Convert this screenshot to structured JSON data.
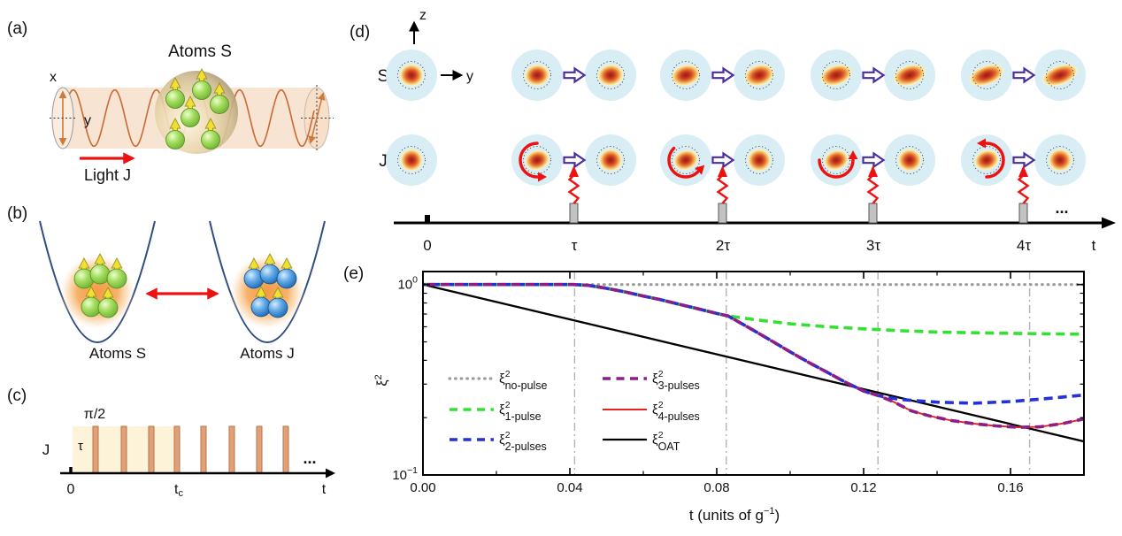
{
  "panels": {
    "a": {
      "label": "(a)",
      "title": "Atoms S",
      "x_label": "x",
      "y_label": "y",
      "light_label": "Light J"
    },
    "b": {
      "label": "(b)",
      "left_label": "Atoms S",
      "right_label": "Atoms J"
    },
    "c": {
      "label": "(c)",
      "j_label": "J",
      "pulse_angle": "π/2",
      "tau_label": "τ",
      "zero_label": "0",
      "tc_base": "t",
      "tc_sub": "c",
      "t_label": "t",
      "ellipsis": "..."
    },
    "d": {
      "label": "(d)",
      "s_label": "S",
      "j_label": "J",
      "z_label": "z",
      "y_label": "y",
      "time_ticks": [
        "0",
        "τ",
        "2τ",
        "3τ",
        "4τ"
      ],
      "t_label": "t",
      "ellipsis": "..."
    },
    "e": {
      "label": "(e)"
    }
  },
  "chart_data": {
    "type": "line",
    "x_axis": {
      "label_base": "t (units of g",
      "label_sup": "−1",
      "label_close": ")",
      "range": [
        0,
        0.18
      ],
      "major_ticks": [
        0,
        0.04,
        0.08,
        0.12,
        0.16
      ],
      "major_tick_labels": [
        "0.00",
        "0.04",
        "0.08",
        "0.12",
        "0.16"
      ],
      "minor_ticks": [
        0.02,
        0.06,
        0.1,
        0.14,
        0.18
      ]
    },
    "y_axis": {
      "label_base": "ξ",
      "label_sup": "2",
      "scale": "log",
      "range": [
        0.1,
        1.17
      ],
      "major_ticks": [
        {
          "value": 1,
          "base": "10",
          "exp": "0"
        },
        {
          "value": 0.1,
          "base": "10",
          "exp": "−1"
        }
      ],
      "minor_ticks": [
        0.2,
        0.3,
        0.4,
        0.5,
        0.6,
        0.7,
        0.8,
        0.9
      ]
    },
    "guide_lines_x": [
      0.0413,
      0.0826,
      0.1239,
      0.1652
    ],
    "grid": false,
    "legend": {
      "symbol": "ξ",
      "sup": "2",
      "columns": 2,
      "position": "inside-lower-left",
      "entries_order": [
        "no-pulse",
        "1-pulse",
        "2-pulses",
        "3-pulses",
        "4-pulses",
        "OAT"
      ]
    },
    "series": [
      {
        "name": "no-pulse",
        "label_sub": "no-pulse",
        "color": "#9b9b9b",
        "line": "dotted",
        "width": 3.2,
        "points": [
          [
            0,
            1
          ],
          [
            0.18,
            1
          ]
        ]
      },
      {
        "name": "OAT",
        "label_sub": "OAT",
        "color": "#000000",
        "line": "solid",
        "width": 2.3,
        "points": [
          [
            0,
            1
          ],
          [
            0.18,
            0.15
          ]
        ]
      },
      {
        "name": "4-pulses",
        "label_sub": "4-pulses",
        "color": "#e62222",
        "line": "solid",
        "width": 1.9,
        "points": [
          [
            0,
            1
          ],
          [
            0.01,
            1
          ],
          [
            0.02,
            1
          ],
          [
            0.03,
            1
          ],
          [
            0.041,
            1
          ],
          [
            0.045,
            0.99
          ],
          [
            0.05,
            0.955
          ],
          [
            0.055,
            0.915
          ],
          [
            0.06,
            0.87
          ],
          [
            0.065,
            0.83
          ],
          [
            0.07,
            0.785
          ],
          [
            0.075,
            0.745
          ],
          [
            0.08,
            0.705
          ],
          [
            0.083,
            0.685
          ],
          [
            0.09,
            0.575
          ],
          [
            0.095,
            0.505
          ],
          [
            0.1,
            0.443
          ],
          [
            0.105,
            0.39
          ],
          [
            0.11,
            0.347
          ],
          [
            0.115,
            0.307
          ],
          [
            0.12,
            0.276
          ],
          [
            0.124,
            0.261
          ],
          [
            0.128,
            0.243
          ],
          [
            0.133,
            0.217
          ],
          [
            0.138,
            0.204
          ],
          [
            0.144,
            0.193
          ],
          [
            0.15,
            0.186
          ],
          [
            0.156,
            0.181
          ],
          [
            0.162,
            0.178
          ],
          [
            0.168,
            0.179
          ],
          [
            0.174,
            0.186
          ],
          [
            0.18,
            0.197
          ]
        ]
      },
      {
        "name": "1-pulse",
        "label_sub": "1-pulse",
        "color": "#33e133",
        "line": "dashed",
        "width": 3.6,
        "points": [
          [
            0,
            1
          ],
          [
            0.01,
            1
          ],
          [
            0.02,
            1
          ],
          [
            0.03,
            1
          ],
          [
            0.041,
            1
          ],
          [
            0.045,
            0.99
          ],
          [
            0.05,
            0.955
          ],
          [
            0.055,
            0.915
          ],
          [
            0.06,
            0.87
          ],
          [
            0.065,
            0.83
          ],
          [
            0.07,
            0.785
          ],
          [
            0.075,
            0.745
          ],
          [
            0.08,
            0.705
          ],
          [
            0.083,
            0.685
          ],
          [
            0.09,
            0.655
          ],
          [
            0.1,
            0.622
          ],
          [
            0.11,
            0.6
          ],
          [
            0.12,
            0.585
          ],
          [
            0.13,
            0.572
          ],
          [
            0.14,
            0.563
          ],
          [
            0.15,
            0.558
          ],
          [
            0.16,
            0.554
          ],
          [
            0.17,
            0.551
          ],
          [
            0.18,
            0.549
          ]
        ]
      },
      {
        "name": "2-pulses",
        "label_sub": "2-pulses",
        "color": "#2430d8",
        "line": "dashed",
        "width": 3.6,
        "points": [
          [
            0,
            1
          ],
          [
            0.01,
            1
          ],
          [
            0.02,
            1
          ],
          [
            0.03,
            1
          ],
          [
            0.041,
            1
          ],
          [
            0.045,
            0.99
          ],
          [
            0.05,
            0.955
          ],
          [
            0.055,
            0.915
          ],
          [
            0.06,
            0.87
          ],
          [
            0.065,
            0.83
          ],
          [
            0.07,
            0.785
          ],
          [
            0.075,
            0.745
          ],
          [
            0.08,
            0.705
          ],
          [
            0.083,
            0.685
          ],
          [
            0.09,
            0.575
          ],
          [
            0.095,
            0.505
          ],
          [
            0.1,
            0.443
          ],
          [
            0.105,
            0.39
          ],
          [
            0.11,
            0.347
          ],
          [
            0.115,
            0.307
          ],
          [
            0.12,
            0.276
          ],
          [
            0.124,
            0.261
          ],
          [
            0.13,
            0.249
          ],
          [
            0.14,
            0.241
          ],
          [
            0.15,
            0.238
          ],
          [
            0.16,
            0.243
          ],
          [
            0.17,
            0.252
          ],
          [
            0.18,
            0.263
          ]
        ]
      },
      {
        "name": "3-pulses",
        "label_sub": "3-pulses",
        "color": "#8a1f8a",
        "line": "dashed",
        "width": 3.6,
        "points": [
          [
            0,
            1
          ],
          [
            0.01,
            1
          ],
          [
            0.02,
            1
          ],
          [
            0.03,
            1
          ],
          [
            0.041,
            1
          ],
          [
            0.045,
            0.99
          ],
          [
            0.05,
            0.955
          ],
          [
            0.055,
            0.915
          ],
          [
            0.06,
            0.87
          ],
          [
            0.065,
            0.83
          ],
          [
            0.07,
            0.785
          ],
          [
            0.075,
            0.745
          ],
          [
            0.08,
            0.705
          ],
          [
            0.083,
            0.685
          ],
          [
            0.09,
            0.575
          ],
          [
            0.095,
            0.505
          ],
          [
            0.1,
            0.443
          ],
          [
            0.105,
            0.39
          ],
          [
            0.11,
            0.347
          ],
          [
            0.115,
            0.307
          ],
          [
            0.12,
            0.276
          ],
          [
            0.124,
            0.261
          ],
          [
            0.128,
            0.243
          ],
          [
            0.133,
            0.217
          ],
          [
            0.138,
            0.204
          ],
          [
            0.144,
            0.193
          ],
          [
            0.15,
            0.186
          ],
          [
            0.156,
            0.181
          ],
          [
            0.162,
            0.178
          ],
          [
            0.168,
            0.179
          ],
          [
            0.174,
            0.186
          ],
          [
            0.18,
            0.197
          ]
        ]
      }
    ]
  }
}
